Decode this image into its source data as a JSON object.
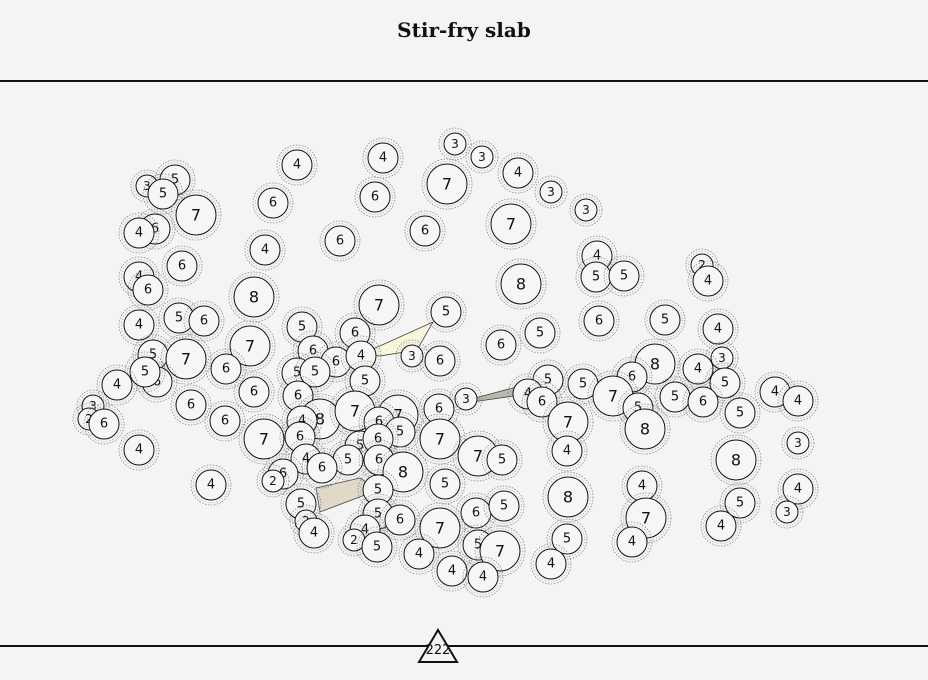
{
  "title": "Stir-fry slab",
  "page_number": "222",
  "colors": {
    "background": "#f5f4f4",
    "ink": "#111111",
    "node_fill": "#f7f6f6",
    "halo": "#888888",
    "wedge_yellow": "#f7f5dc",
    "wedge_tan": "#e0d8c8",
    "wedge_grey": "#b8b8ae"
  },
  "node_labels": [
    "2",
    "3",
    "4",
    "5",
    "6",
    "7",
    "8"
  ]
}
